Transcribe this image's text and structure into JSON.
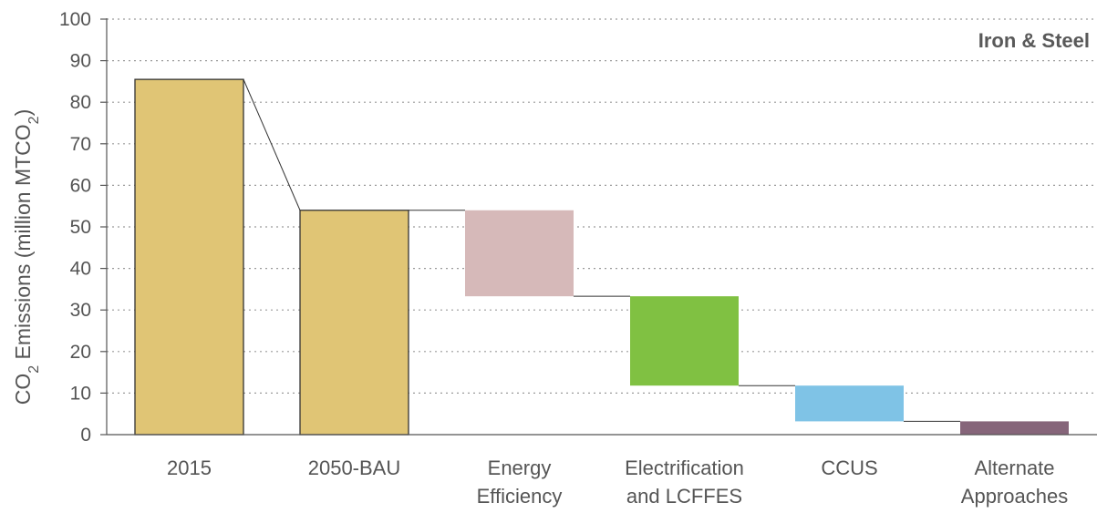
{
  "chart_data": {
    "type": "bar",
    "title": "Iron & Steel",
    "ylabel": {
      "prefix": "CO",
      "prefix_sub": "2",
      "middle": " Emissions (million MTCO",
      "suffix_sub": "2",
      "suffix": ")"
    },
    "ylim": [
      0,
      100
    ],
    "yticks": [
      0,
      10,
      20,
      30,
      40,
      50,
      60,
      70,
      80,
      90,
      100
    ],
    "grid": true,
    "categories": [
      [
        "2015"
      ],
      [
        "2050-BAU"
      ],
      [
        "Energy",
        "Efficiency"
      ],
      [
        "Electrification",
        "and LCFFES"
      ],
      [
        "CCUS"
      ],
      [
        "Alternate",
        "Approaches"
      ]
    ],
    "bars": [
      {
        "bottom": 0,
        "top": 85.5,
        "color": "#e0c575",
        "outlined": true
      },
      {
        "bottom": 0,
        "top": 54,
        "color": "#e0c575",
        "outlined": true
      },
      {
        "bottom": 33.3,
        "top": 54,
        "color": "#d6b9b9",
        "outlined": false
      },
      {
        "bottom": 11.8,
        "top": 33.3,
        "color": "#80c142",
        "outlined": false
      },
      {
        "bottom": 3.2,
        "top": 11.8,
        "color": "#7fc3e6",
        "outlined": false
      },
      {
        "bottom": 0,
        "top": 3.2,
        "color": "#86657a",
        "outlined": false
      }
    ]
  }
}
